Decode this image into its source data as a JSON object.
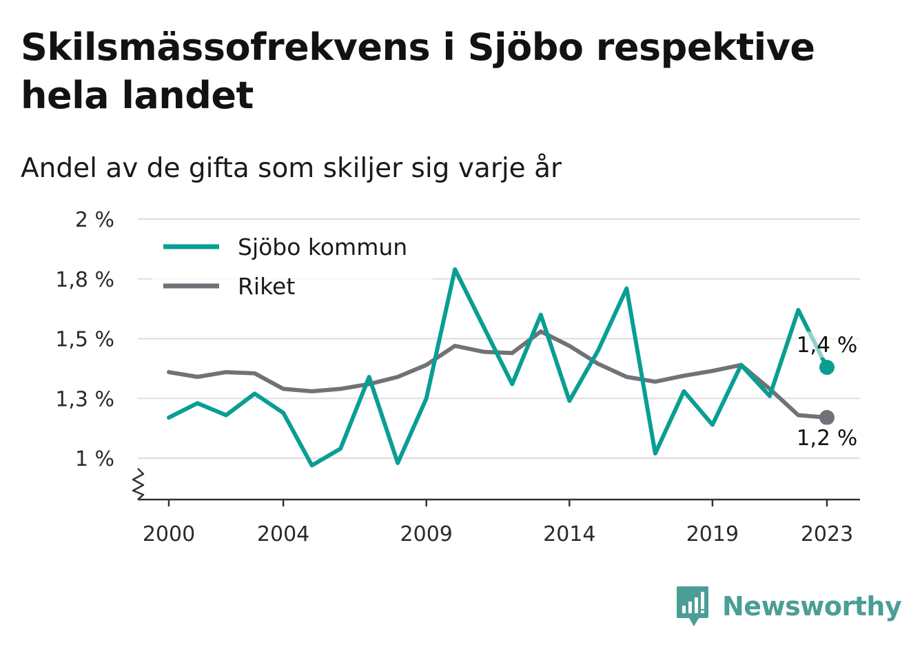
{
  "title": "Skilsmässofrekvens i Sjöbo respektive hela landet",
  "subtitle": "Andel av de gifta som skiljer sig varje år",
  "brand": {
    "name": "Newsworthy",
    "icon": "bar-chart-icon",
    "color": "#4a9e96"
  },
  "chart_data": {
    "type": "line",
    "title": "Skilsmässofrekvens i Sjöbo respektive hela landet",
    "subtitle": "Andel av de gifta som skiljer sig varje år",
    "xlabel": "",
    "ylabel": "",
    "x": [
      2000,
      2001,
      2002,
      2003,
      2004,
      2005,
      2006,
      2007,
      2008,
      2009,
      2010,
      2011,
      2012,
      2013,
      2014,
      2015,
      2016,
      2017,
      2018,
      2019,
      2020,
      2021,
      2022,
      2023
    ],
    "x_ticks": [
      "2000",
      "2004",
      "2009",
      "2014",
      "2019",
      "2023"
    ],
    "x_tick_values": [
      2000,
      2004,
      2009,
      2014,
      2019,
      2023
    ],
    "ylim": [
      0.86,
      2.0
    ],
    "y_ticks": [
      {
        "value": 1.0,
        "label": "1 %"
      },
      {
        "value": 1.25,
        "label": "1,3 %"
      },
      {
        "value": 1.5,
        "label": "1,5 %"
      },
      {
        "value": 1.75,
        "label": "1,8 %"
      },
      {
        "value": 2.0,
        "label": "2 %"
      }
    ],
    "grid": true,
    "axis_break": true,
    "legend_position": "top-left",
    "series": [
      {
        "name": "Sjöbo kommun",
        "color": "#0a9e93",
        "values": [
          1.17,
          1.23,
          1.18,
          1.27,
          1.19,
          0.97,
          1.04,
          1.34,
          0.98,
          1.25,
          1.79,
          1.55,
          1.31,
          1.6,
          1.24,
          1.45,
          1.71,
          1.02,
          1.28,
          1.14,
          1.39,
          1.26,
          1.62,
          1.38
        ],
        "end_label": "1,4 %"
      },
      {
        "name": "Riket",
        "color": "#717178",
        "values": [
          1.36,
          1.34,
          1.36,
          1.355,
          1.29,
          1.28,
          1.29,
          1.31,
          1.34,
          1.39,
          1.47,
          1.445,
          1.44,
          1.53,
          1.47,
          1.395,
          1.34,
          1.32,
          1.345,
          1.365,
          1.39,
          1.29,
          1.18,
          1.17
        ],
        "end_label": "1,2 %"
      }
    ]
  }
}
